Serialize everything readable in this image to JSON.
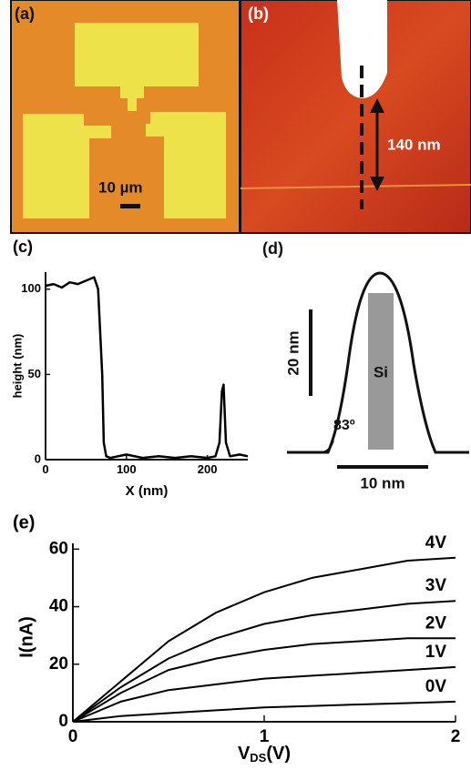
{
  "panel_a": {
    "panel_label": "(a)",
    "scale_label": "10 µm"
  },
  "panel_b": {
    "panel_label": "(b)",
    "distance_label": "140 nm"
  },
  "panel_d": {
    "panel_label": "(d)",
    "vertical_scale": "20 nm",
    "horizontal_scale": "10 nm",
    "angle_label": "83º",
    "material_label": "Si"
  },
  "chart_data": [
    {
      "type": "line",
      "panel_label": "(c)",
      "x_label": "X (nm)",
      "y_label": "height (nm)",
      "x": [
        0,
        10,
        20,
        30,
        40,
        50,
        60,
        65,
        70,
        72,
        75,
        80,
        100,
        120,
        140,
        160,
        180,
        200,
        210,
        215,
        218,
        220,
        223,
        228,
        240,
        250
      ],
      "series": [
        {
          "color": "#000000",
          "values": [
            102,
            103,
            101,
            104,
            103,
            105,
            107,
            100,
            50,
            10,
            2,
            1,
            3,
            1,
            2,
            1,
            2,
            1,
            2,
            10,
            40,
            44,
            10,
            2,
            3,
            2
          ]
        }
      ],
      "xlim": [
        0,
        250
      ],
      "xticks": [
        0,
        100,
        200
      ],
      "ylim": [
        0,
        110
      ],
      "yticks": [
        0,
        50,
        100
      ]
    },
    {
      "type": "line",
      "panel_label": "(e)",
      "x_label": {
        "main": "V",
        "sub": "DS",
        "unit": "(V)"
      },
      "y_label": "I(nA)",
      "x": [
        0,
        0.25,
        0.5,
        0.75,
        1,
        1.25,
        1.5,
        1.75,
        2
      ],
      "series": [
        {
          "name": "4V",
          "color": "#000000",
          "values": [
            0,
            14,
            28,
            38,
            45,
            50,
            53,
            56,
            57
          ]
        },
        {
          "name": "3V",
          "color": "#000000",
          "values": [
            0,
            12,
            22,
            29,
            34,
            37,
            39,
            41,
            42
          ]
        },
        {
          "name": "2V",
          "color": "#000000",
          "values": [
            0,
            10,
            18,
            22,
            25,
            27,
            28,
            29,
            29
          ]
        },
        {
          "name": "1V",
          "color": "#000000",
          "values": [
            0,
            7,
            11,
            13,
            15,
            16,
            17,
            18,
            19
          ]
        },
        {
          "name": "0V",
          "color": "#000000",
          "values": [
            0,
            2,
            3,
            4,
            5,
            5.5,
            6,
            6.5,
            7
          ]
        }
      ],
      "xlim": [
        0,
        2
      ],
      "xticks": [
        0,
        1,
        2
      ],
      "ylim": [
        0,
        62
      ],
      "yticks": [
        0,
        20,
        40,
        60
      ]
    }
  ]
}
